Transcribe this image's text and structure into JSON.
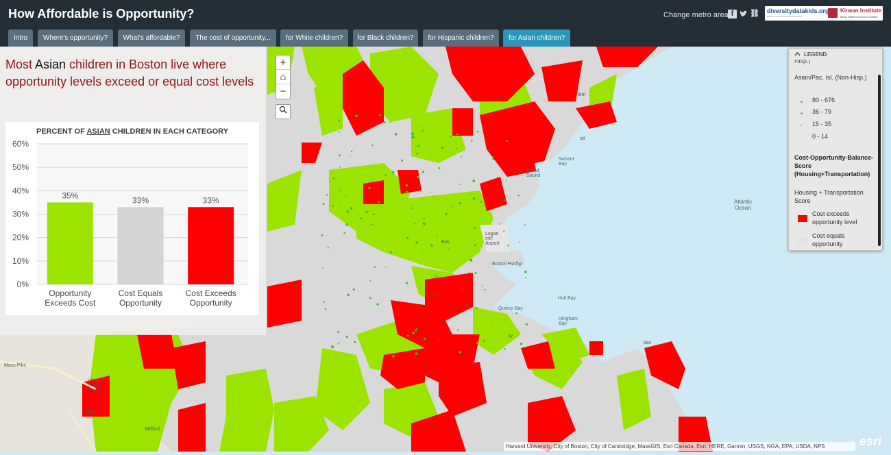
{
  "app": {
    "title": "How Affordable is Opportunity?",
    "change_metro": "Change metro area",
    "facebook": "f",
    "twitter": "t",
    "link": "⛓"
  },
  "logos": {
    "ddk": "diversitydatakids.org",
    "ddk_tag": "data for a diverse and equitable future",
    "kirwan": "Kirwan Institute",
    "kirwan_tag": "Many Differences One Destiny"
  },
  "tabs": [
    {
      "label": "Intro",
      "active": false
    },
    {
      "label": "Where's opportunity?",
      "active": false
    },
    {
      "label": "What's affordable?",
      "active": false
    },
    {
      "label": "The cost of opportunity...",
      "active": false
    },
    {
      "label": "for White children?",
      "active": false
    },
    {
      "label": "for Black children?",
      "active": false
    },
    {
      "label": "for Hispanic children?",
      "active": false
    },
    {
      "label": "for Asian children?",
      "active": true
    }
  ],
  "headline": {
    "p1": "Most ",
    "group": "Asian",
    "p2": " children in Boston live where opportunity levels exceed or equal cost levels"
  },
  "chart_title": {
    "p1": "PERCENT OF ",
    "group": "ASIAN",
    "p2": " CHILDREN IN EACH CATEGORY"
  },
  "chart_data": {
    "type": "bar",
    "categories": [
      "Opportunity Exceeds Cost",
      "Cost Equals Opportunity",
      "Cost Exceeds Opportunity"
    ],
    "category_lines": [
      [
        "Opportunity",
        "Exceeds Cost"
      ],
      [
        "Cost Equals",
        "Opportunity"
      ],
      [
        "Cost Exceeds",
        "Opportunity"
      ]
    ],
    "values": [
      35,
      33,
      33
    ],
    "value_labels": [
      "35%",
      "33%",
      "33%"
    ],
    "colors": [
      "#9be400",
      "#d3d3d3",
      "#fe0000"
    ],
    "ylim": [
      0,
      60
    ],
    "yticks": [
      "0%",
      "10%",
      "20%",
      "30%",
      "40%",
      "50%",
      "60%"
    ],
    "grid": true
  },
  "map": {
    "zoom_in": "+",
    "home": "⌂",
    "zoom_out": "−",
    "search": "🔍",
    "labels": {
      "salem": "lem",
      "nahant": "Nahant Bay",
      "broad": "Broad Sound",
      "atlantic": "Atlantic Ocean",
      "logan": "Logan Int'l Airport",
      "harbor": "Boston Harbor",
      "quincy": "Quincy Bay",
      "hull": "Hull Bay",
      "hingham": "Hingham Bay",
      "upton_sf": "Upton State Forest",
      "upton": "Upton",
      "milford": "Milford",
      "masspike": "Mass Pike",
      "boston": "Bos",
      "dorc": "Dorc",
      "cy": "cy",
      "ott": "ott",
      "ass": "ass"
    },
    "colors": {
      "green": "#9be400",
      "red": "#fe0000",
      "gray": "#d9d9d9",
      "water": "#cfe9f5",
      "land": "#e8e4dd"
    }
  },
  "legend": {
    "header": "LEGEND",
    "cut_label": "Hisp.)",
    "pop_title": "Asian/Pac. Isl. (Non-Hisp.)",
    "pop_classes": [
      "80 - 676",
      "36 - 79",
      "15 - 35",
      "0 - 14"
    ],
    "score_title": "Cost-Opportunity-Balance-Score (Housing+Transportation)",
    "score_sub": "Housing + Transportation Score",
    "items": [
      "Cost exceeds opportunity level",
      "Cost equals opportunity"
    ]
  },
  "attribution": "Harvard University, City of Boston, City of Cambridge, MassGIS, Esri Canada, Esri, HERE, Garmin, USGS, NGA, EPA, USDA, NPS",
  "esri": "esri"
}
